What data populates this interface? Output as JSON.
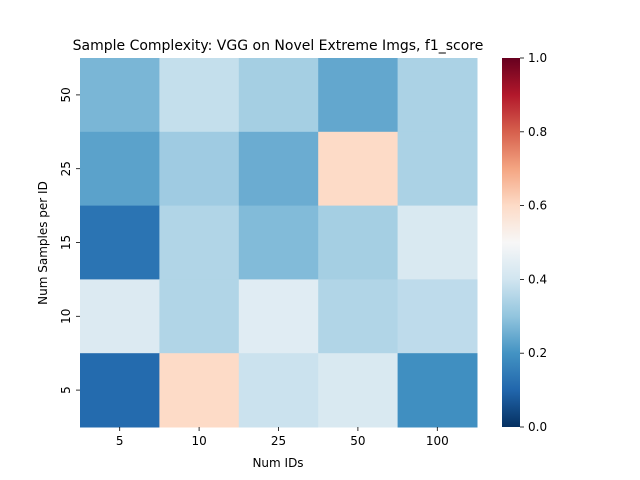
{
  "chart_data": {
    "type": "heatmap",
    "title": "Sample Complexity: VGG on Novel Extreme Imgs, f1_score",
    "xlabel": "Num IDs",
    "ylabel": "Num Samples per ID",
    "x_categories": [
      "5",
      "10",
      "25",
      "50",
      "100"
    ],
    "y_categories": [
      "50",
      "25",
      "15",
      "10",
      "5"
    ],
    "values": [
      [
        0.27,
        0.38,
        0.33,
        0.24,
        0.34
      ],
      [
        0.23,
        0.32,
        0.25,
        0.6,
        0.34
      ],
      [
        0.13,
        0.35,
        0.28,
        0.33,
        0.42
      ],
      [
        0.43,
        0.35,
        0.44,
        0.35,
        0.37
      ],
      [
        0.11,
        0.6,
        0.39,
        0.42,
        0.19
      ]
    ],
    "colormap": "RdBu_r",
    "vmin": 0.0,
    "vmax": 1.0,
    "colorbar_ticks": [
      "0.0",
      "0.2",
      "0.4",
      "0.6",
      "0.8",
      "1.0"
    ]
  }
}
